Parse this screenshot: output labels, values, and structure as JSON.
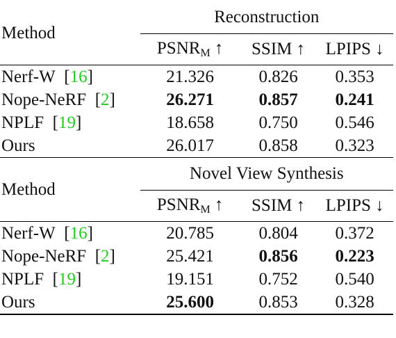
{
  "sections": [
    {
      "group_title": "Reconstruction",
      "method_header": "Method",
      "metrics": {
        "psnr": "PSNR",
        "psnr_sub": "M",
        "psnr_arrow": "↑",
        "ssim": "SSIM ↑",
        "lpips": "LPIPS ↓"
      },
      "rows": [
        {
          "method": "Nerf-W",
          "cite": "16",
          "psnr": "21.326",
          "ssim": "0.826",
          "lpips": "0.353"
        },
        {
          "method": "Nope-NeRF",
          "cite": "2",
          "psnr": "26.271",
          "ssim": "0.857",
          "lpips": "0.241"
        },
        {
          "method": "NPLF",
          "cite": "19",
          "psnr": "18.658",
          "ssim": "0.750",
          "lpips": "0.546"
        },
        {
          "method": "Ours",
          "cite": "",
          "psnr": "26.017",
          "ssim": "0.858",
          "lpips": "0.323"
        }
      ]
    },
    {
      "group_title": "Novel View Synthesis",
      "method_header": "Method",
      "metrics": {
        "psnr": "PSNR",
        "psnr_sub": "M",
        "psnr_arrow": "↑",
        "ssim": "SSIM ↑",
        "lpips": "LPIPS ↓"
      },
      "rows": [
        {
          "method": "Nerf-W",
          "cite": "16",
          "psnr": "20.785",
          "ssim": "0.804",
          "lpips": "0.372"
        },
        {
          "method": "Nope-NeRF",
          "cite": "2",
          "psnr": "25.421",
          "ssim": "0.856",
          "lpips": "0.223"
        },
        {
          "method": "NPLF",
          "cite": "19",
          "psnr": "19.151",
          "ssim": "0.752",
          "lpips": "0.540"
        },
        {
          "method": "Ours",
          "cite": "",
          "psnr": "25.600",
          "ssim": "0.853",
          "lpips": "0.328"
        }
      ]
    }
  ],
  "colors": {
    "citation": "#22cc22",
    "text": "#111111"
  }
}
